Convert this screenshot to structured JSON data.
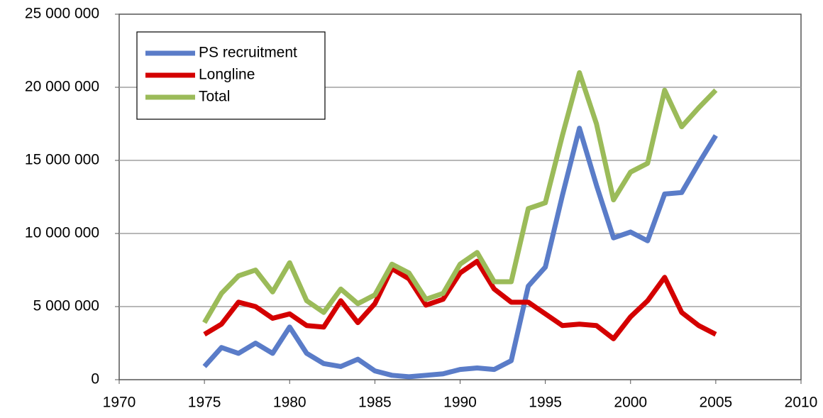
{
  "chart_data": {
    "type": "line",
    "x": [
      1975,
      1976,
      1977,
      1978,
      1979,
      1980,
      1981,
      1982,
      1983,
      1984,
      1985,
      1986,
      1987,
      1988,
      1989,
      1990,
      1991,
      1992,
      1993,
      1994,
      1995,
      1996,
      1997,
      1998,
      1999,
      2000,
      2001,
      2002,
      2003,
      2004,
      2005
    ],
    "series": [
      {
        "name": "PS recruitment",
        "color": "#5a7cc8",
        "values": [
          900000,
          2200000,
          1800000,
          2500000,
          1800000,
          3600000,
          1800000,
          1100000,
          900000,
          1400000,
          600000,
          300000,
          200000,
          300000,
          400000,
          700000,
          800000,
          700000,
          1300000,
          6400000,
          7700000,
          12600000,
          17200000,
          13300000,
          9700000,
          10100000,
          9500000,
          12700000,
          12800000,
          14800000,
          16700000
        ]
      },
      {
        "name": "Longline",
        "color": "#d40000",
        "values": [
          3100000,
          3800000,
          5300000,
          5000000,
          4200000,
          4500000,
          3700000,
          3600000,
          5400000,
          3900000,
          5200000,
          7600000,
          6900000,
          5100000,
          5500000,
          7300000,
          8100000,
          6200000,
          5300000,
          5300000,
          4500000,
          3700000,
          3800000,
          3700000,
          2800000,
          4300000,
          5400000,
          7000000,
          4600000,
          3700000,
          3100000
        ]
      },
      {
        "name": "Total",
        "color": "#9bbb59",
        "values": [
          3900000,
          5900000,
          7100000,
          7500000,
          6000000,
          8000000,
          5400000,
          4600000,
          6200000,
          5200000,
          5800000,
          7900000,
          7300000,
          5500000,
          5900000,
          7900000,
          8700000,
          6700000,
          6700000,
          11700000,
          12100000,
          16700000,
          21000000,
          17500000,
          12300000,
          14200000,
          14800000,
          19800000,
          17300000,
          18600000,
          19800000
        ]
      }
    ],
    "xlim": [
      1970,
      2010
    ],
    "xticks": [
      1970,
      1975,
      1980,
      1985,
      1990,
      1995,
      2000,
      2005,
      2010
    ],
    "ylim": [
      0,
      25000000
    ],
    "yticks": [
      0,
      {
        "value": 5000000,
        "label": "5 000 000"
      },
      {
        "value": 10000000,
        "label": "10 000 000"
      },
      {
        "value": 15000000,
        "label": "15 000 000"
      },
      {
        "value": 20000000,
        "label": "20 000 000"
      },
      {
        "value": 25000000,
        "label": "25 000 000"
      }
    ],
    "grid": true,
    "legend": "upper left"
  }
}
